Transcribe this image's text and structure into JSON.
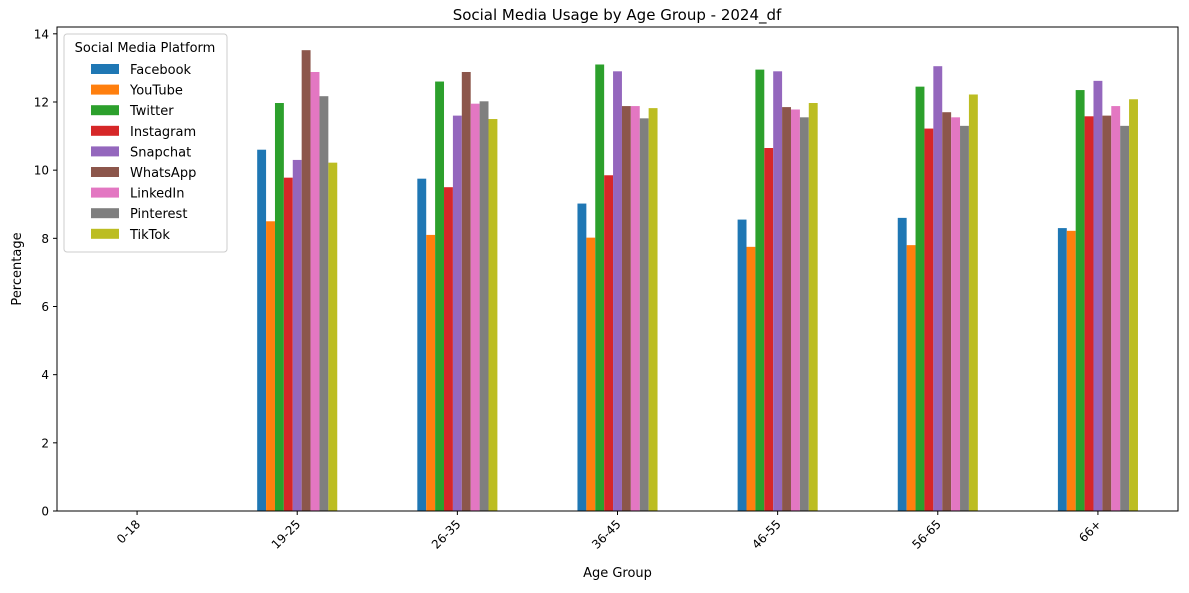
{
  "chart_data": {
    "type": "bar",
    "title": "Social Media Usage by Age Group - 2024_df",
    "xlabel": "Age Group",
    "ylabel": "Percentage",
    "ylim": [
      0,
      14.2
    ],
    "yticks": [
      0,
      2,
      4,
      6,
      8,
      10,
      12,
      14
    ],
    "categories": [
      "0-18",
      "19-25",
      "26-35",
      "36-45",
      "46-55",
      "56-65",
      "66+"
    ],
    "legend": {
      "title": "Social Media Platform",
      "placement": "top-left"
    },
    "grid": false,
    "series": [
      {
        "name": "Facebook",
        "color": "#1f77b4",
        "values": [
          0,
          10.6,
          9.75,
          9.02,
          8.55,
          8.6,
          8.3
        ]
      },
      {
        "name": "YouTube",
        "color": "#ff7f0e",
        "values": [
          0,
          8.5,
          8.1,
          8.02,
          7.75,
          7.8,
          8.22
        ]
      },
      {
        "name": "Twitter",
        "color": "#2ca02c",
        "values": [
          0,
          11.97,
          12.6,
          13.1,
          12.95,
          12.45,
          12.35
        ]
      },
      {
        "name": "Instagram",
        "color": "#d62728",
        "values": [
          0,
          9.78,
          9.5,
          9.85,
          10.65,
          11.22,
          11.58
        ]
      },
      {
        "name": "Snapchat",
        "color": "#9467bd",
        "values": [
          0,
          10.3,
          11.6,
          12.9,
          12.9,
          13.05,
          12.62
        ]
      },
      {
        "name": "WhatsApp",
        "color": "#8c564b",
        "values": [
          0,
          13.52,
          12.88,
          11.88,
          11.85,
          11.7,
          11.6
        ]
      },
      {
        "name": "LinkedIn",
        "color": "#e377c2",
        "values": [
          0,
          12.88,
          11.95,
          11.88,
          11.78,
          11.55,
          11.88
        ]
      },
      {
        "name": "Pinterest",
        "color": "#7f7f7f",
        "values": [
          0,
          12.17,
          12.02,
          11.52,
          11.55,
          11.3,
          11.3
        ]
      },
      {
        "name": "TikTok",
        "color": "#bcbd22",
        "values": [
          0,
          10.22,
          11.5,
          11.82,
          11.97,
          12.22,
          12.08
        ]
      }
    ]
  }
}
